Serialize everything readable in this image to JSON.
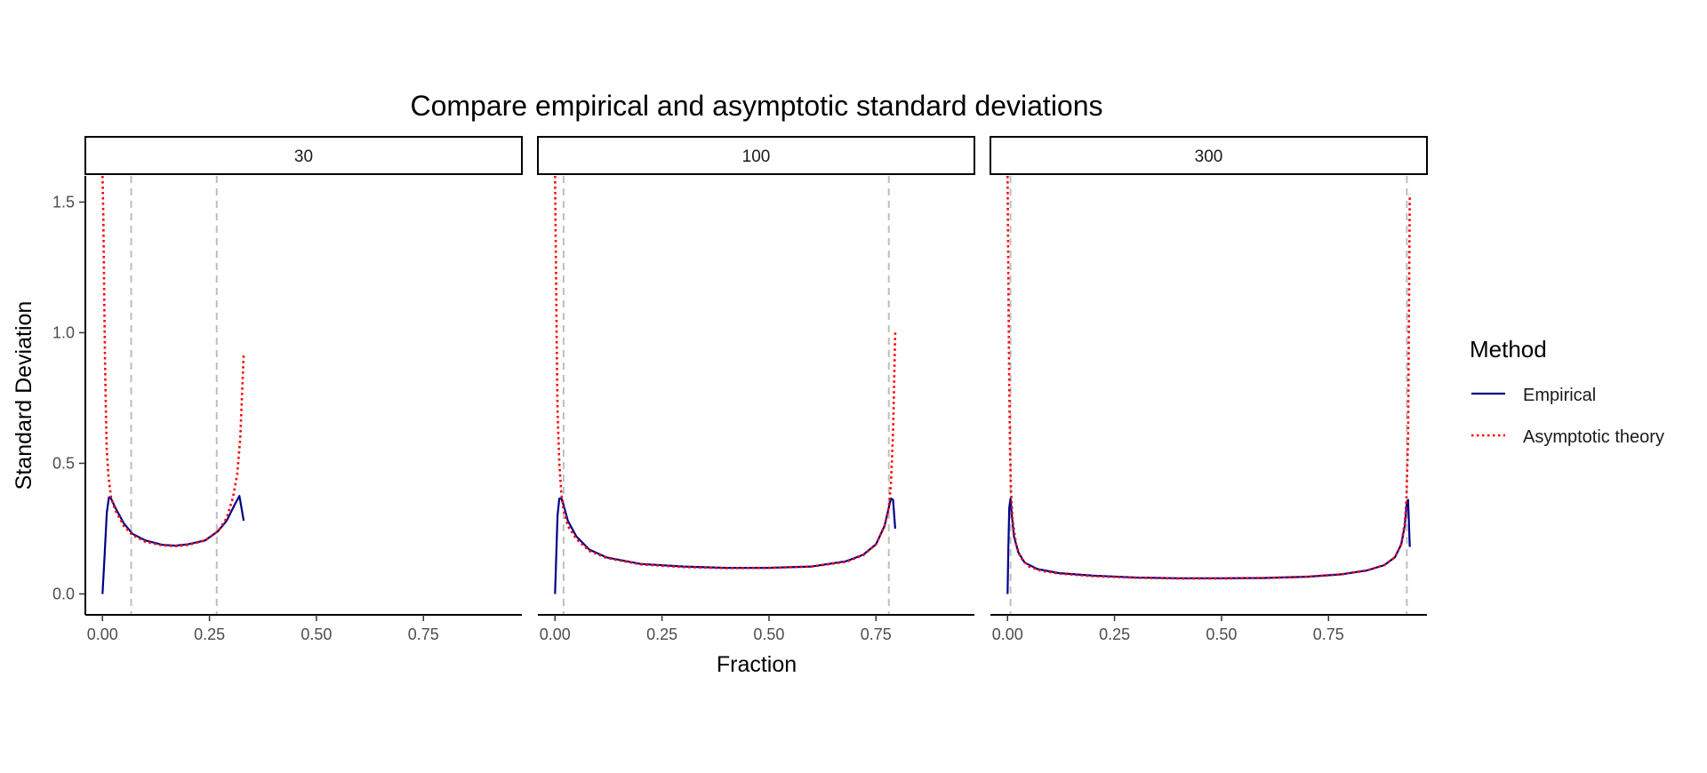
{
  "chart_data": {
    "type": "line",
    "title": "Compare empirical and asymptotic standard deviations",
    "xlabel": "Fraction",
    "ylabel": "Standard Deviation",
    "xlim": [
      -0.04,
      0.98
    ],
    "ylim": [
      -0.08,
      1.6
    ],
    "x_ticks": [
      0.0,
      0.25,
      0.5,
      0.75
    ],
    "x_tick_labels": [
      "0.00",
      "0.25",
      "0.50",
      "0.75"
    ],
    "y_ticks": [
      0.0,
      0.5,
      1.0,
      1.5
    ],
    "y_tick_labels": [
      "0.0",
      "0.5",
      "1.0",
      "1.5"
    ],
    "grid": false,
    "legend": {
      "title": "Method",
      "position": "right",
      "entries": [
        {
          "label": "Empirical",
          "color": "#00008B",
          "style": "solid"
        },
        {
          "label": "Asymptotic theory",
          "color": "#FF0000",
          "style": "dotted"
        }
      ]
    },
    "panels": [
      {
        "label": "30",
        "vlines": [
          0.067,
          0.267
        ],
        "series": [
          {
            "name": "Empirical",
            "x": [
              0.0,
              0.005,
              0.01,
              0.015,
              0.02,
              0.03,
              0.05,
              0.07,
              0.1,
              0.14,
              0.17,
              0.2,
              0.24,
              0.27,
              0.29,
              0.31,
              0.32,
              0.33
            ],
            "y": [
              0.0,
              0.15,
              0.31,
              0.37,
              0.365,
              0.33,
              0.27,
              0.23,
              0.205,
              0.188,
              0.185,
              0.19,
              0.205,
              0.24,
              0.28,
              0.345,
              0.375,
              0.28
            ]
          },
          {
            "name": "Asymptotic theory",
            "x": [
              0.0,
              0.002,
              0.004,
              0.006,
              0.008,
              0.01,
              0.014,
              0.02,
              0.03,
              0.05,
              0.07,
              0.1,
              0.14,
              0.17,
              0.2,
              0.24,
              0.27,
              0.29,
              0.305,
              0.315,
              0.322,
              0.33
            ],
            "y": [
              1.6,
              1.45,
              1.15,
              0.9,
              0.7,
              0.55,
              0.45,
              0.37,
              0.32,
              0.26,
              0.225,
              0.2,
              0.186,
              0.183,
              0.188,
              0.205,
              0.24,
              0.29,
              0.37,
              0.46,
              0.6,
              0.92
            ]
          }
        ]
      },
      {
        "label": "100",
        "vlines": [
          0.02,
          0.78
        ],
        "series": [
          {
            "name": "Empirical",
            "x": [
              0.0,
              0.003,
              0.006,
              0.01,
              0.015,
              0.02,
              0.03,
              0.05,
              0.08,
              0.12,
              0.2,
              0.3,
              0.4,
              0.5,
              0.6,
              0.68,
              0.72,
              0.75,
              0.77,
              0.78,
              0.785,
              0.79,
              0.795
            ],
            "y": [
              0.0,
              0.15,
              0.3,
              0.365,
              0.365,
              0.34,
              0.28,
              0.22,
              0.17,
              0.14,
              0.115,
              0.105,
              0.1,
              0.1,
              0.105,
              0.125,
              0.15,
              0.19,
              0.26,
              0.33,
              0.365,
              0.36,
              0.25
            ]
          },
          {
            "name": "Asymptotic theory",
            "x": [
              0.0,
              0.002,
              0.004,
              0.006,
              0.01,
              0.015,
              0.02,
              0.03,
              0.05,
              0.08,
              0.12,
              0.2,
              0.3,
              0.4,
              0.5,
              0.6,
              0.68,
              0.72,
              0.75,
              0.77,
              0.78,
              0.785,
              0.79,
              0.795
            ],
            "y": [
              1.6,
              1.3,
              0.95,
              0.7,
              0.5,
              0.38,
              0.32,
              0.26,
              0.21,
              0.165,
              0.138,
              0.113,
              0.103,
              0.099,
              0.1,
              0.105,
              0.123,
              0.148,
              0.19,
              0.26,
              0.33,
              0.42,
              0.62,
              1.0
            ]
          }
        ]
      },
      {
        "label": "300",
        "vlines": [
          0.007,
          0.933
        ],
        "series": [
          {
            "name": "Empirical",
            "x": [
              0.0,
              0.002,
              0.004,
              0.007,
              0.01,
              0.015,
              0.025,
              0.04,
              0.07,
              0.12,
              0.2,
              0.3,
              0.4,
              0.5,
              0.6,
              0.7,
              0.78,
              0.84,
              0.88,
              0.905,
              0.92,
              0.928,
              0.933,
              0.936,
              0.94
            ],
            "y": [
              0.0,
              0.18,
              0.33,
              0.365,
              0.3,
              0.22,
              0.16,
              0.12,
              0.095,
              0.08,
              0.07,
              0.063,
              0.06,
              0.06,
              0.061,
              0.066,
              0.075,
              0.09,
              0.11,
              0.14,
              0.19,
              0.26,
              0.35,
              0.36,
              0.18
            ]
          },
          {
            "name": "Asymptotic theory",
            "x": [
              0.0,
              0.002,
              0.004,
              0.006,
              0.008,
              0.012,
              0.02,
              0.03,
              0.05,
              0.08,
              0.12,
              0.2,
              0.3,
              0.4,
              0.5,
              0.6,
              0.7,
              0.78,
              0.84,
              0.88,
              0.905,
              0.92,
              0.928,
              0.932,
              0.936,
              0.94
            ],
            "y": [
              1.6,
              1.2,
              0.8,
              0.55,
              0.4,
              0.28,
              0.19,
              0.14,
              0.105,
              0.088,
              0.078,
              0.068,
              0.062,
              0.059,
              0.059,
              0.061,
              0.066,
              0.075,
              0.09,
              0.11,
              0.14,
              0.19,
              0.27,
              0.36,
              0.6,
              1.53
            ]
          }
        ]
      }
    ]
  }
}
